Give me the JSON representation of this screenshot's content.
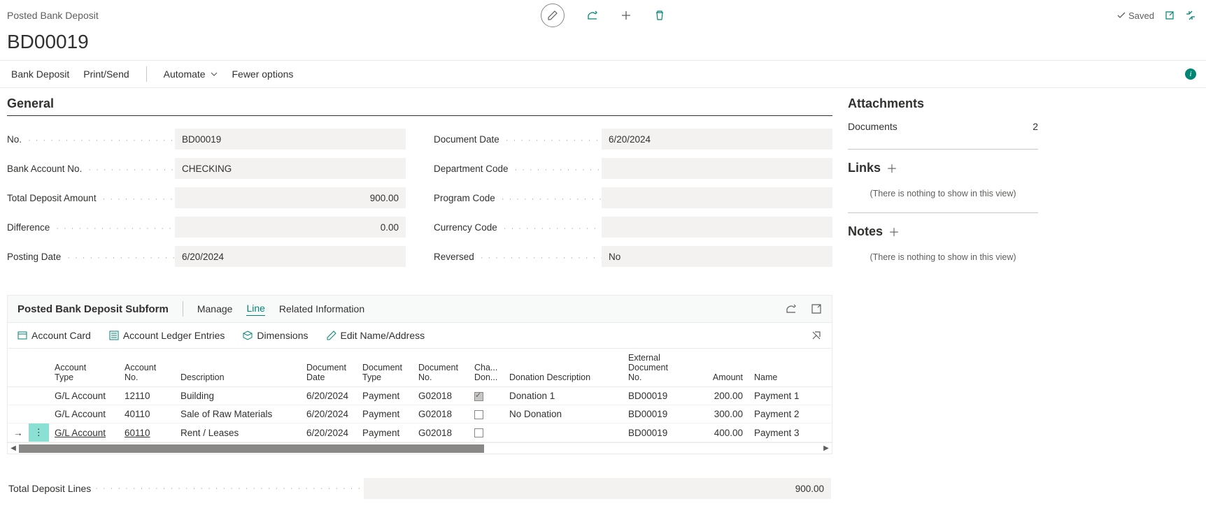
{
  "header": {
    "breadcrumb": "Posted Bank Deposit",
    "title": "BD00019",
    "saved_label": "Saved"
  },
  "action_bar": {
    "bank_deposit": "Bank Deposit",
    "print_send": "Print/Send",
    "automate": "Automate",
    "fewer_options": "Fewer options"
  },
  "general": {
    "title": "General",
    "fields": {
      "no_label": "No.",
      "no_value": "BD00019",
      "bank_account_label": "Bank Account No.",
      "bank_account_value": "CHECKING",
      "total_deposit_label": "Total Deposit Amount",
      "total_deposit_value": "900.00",
      "difference_label": "Difference",
      "difference_value": "0.00",
      "posting_date_label": "Posting Date",
      "posting_date_value": "6/20/2024",
      "document_date_label": "Document Date",
      "document_date_value": "6/20/2024",
      "department_label": "Department Code",
      "department_value": "",
      "program_label": "Program Code",
      "program_value": "",
      "currency_label": "Currency Code",
      "currency_value": "",
      "reversed_label": "Reversed",
      "reversed_value": "No"
    }
  },
  "subform": {
    "title": "Posted Bank Deposit Subform",
    "tabs": {
      "manage": "Manage",
      "line": "Line",
      "related": "Related Information"
    },
    "toolbar": {
      "account_card": "Account Card",
      "ledger_entries": "Account Ledger Entries",
      "dimensions": "Dimensions",
      "edit_name": "Edit Name/Address"
    },
    "columns": {
      "account_type": "Account\nType",
      "account_no": "Account No.",
      "description": "Description",
      "doc_date": "Document\nDate",
      "doc_type": "Document\nType",
      "doc_no": "Document\nNo.",
      "cha_don": "Cha...\nDon...",
      "donation_desc": "Donation Description",
      "ext_doc_no": "External\nDocument\nNo.",
      "amount": "Amount",
      "name": "Name"
    },
    "rows": [
      {
        "account_type": "G/L Account",
        "account_no": "12110",
        "description": "Building",
        "doc_date": "6/20/2024",
        "doc_type": "Payment",
        "doc_no": "G02018",
        "checked": true,
        "donation_desc": "Donation 1",
        "ext_doc": "BD00019",
        "amount": "200.00",
        "name": "Payment 1",
        "selected": false
      },
      {
        "account_type": "G/L Account",
        "account_no": "40110",
        "description": "Sale of Raw Materials",
        "doc_date": "6/20/2024",
        "doc_type": "Payment",
        "doc_no": "G02018",
        "checked": false,
        "donation_desc": "No Donation",
        "ext_doc": "BD00019",
        "amount": "300.00",
        "name": "Payment 2",
        "selected": false
      },
      {
        "account_type": "G/L Account",
        "account_no": "60110",
        "description": "Rent / Leases",
        "doc_date": "6/20/2024",
        "doc_type": "Payment",
        "doc_no": "G02018",
        "checked": false,
        "donation_desc": "",
        "ext_doc": "BD00019",
        "amount": "400.00",
        "name": "Payment 3",
        "selected": true
      }
    ]
  },
  "total_line": {
    "label": "Total Deposit Lines",
    "value": "900.00"
  },
  "side": {
    "attachments_title": "Attachments",
    "documents_label": "Documents",
    "documents_count": "2",
    "links_title": "Links",
    "notes_title": "Notes",
    "empty_msg": "(There is nothing to show in this view)"
  }
}
